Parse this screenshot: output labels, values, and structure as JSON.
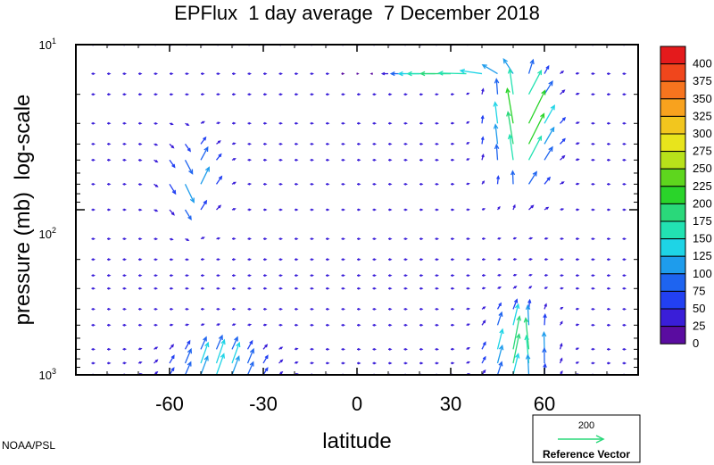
{
  "chart_data": {
    "type": "quiver",
    "title": "EPFlux  1 day average  7 December 2018",
    "xlabel": "latitude",
    "ylabel": "pressure (mb)  log-scale",
    "xlim": [
      -90,
      90
    ],
    "ylim": [
      1000,
      10
    ],
    "y_scale": "log",
    "x_ticks": [
      "-60",
      "-30",
      "0",
      "30",
      "60"
    ],
    "x_tick_values": [
      -60,
      -30,
      0,
      30,
      60
    ],
    "y_ticks": [
      {
        "base": "10",
        "exp": "1",
        "value": 10
      },
      {
        "base": "10",
        "exp": "2",
        "value": 100
      },
      {
        "base": "10",
        "exp": "3",
        "value": 1000
      }
    ],
    "colorbar": {
      "labels": [
        "400",
        "375",
        "350",
        "325",
        "300",
        "275",
        "250",
        "225",
        "200",
        "175",
        "150",
        "125",
        "100",
        "75",
        "50",
        "25",
        "0"
      ],
      "colors": [
        "#e41a1c",
        "#f0461c",
        "#f7741e",
        "#f8a21e",
        "#f2c61e",
        "#e8e41c",
        "#b8e21a",
        "#5ed61e",
        "#2ad42a",
        "#2ad87a",
        "#22e2b2",
        "#1ed4e6",
        "#1e9cec",
        "#1e64f0",
        "#2240f2",
        "#3a1ed8",
        "#5a0ca0"
      ]
    },
    "reference_vector": {
      "value": "200",
      "label": "Reference Vector"
    },
    "credit": "NOAA/PSL",
    "pressure_levels": [
      10,
      15,
      20,
      30,
      40,
      50,
      70,
      100,
      150,
      200,
      250,
      300,
      400,
      500,
      700,
      850,
      1000
    ]
  }
}
